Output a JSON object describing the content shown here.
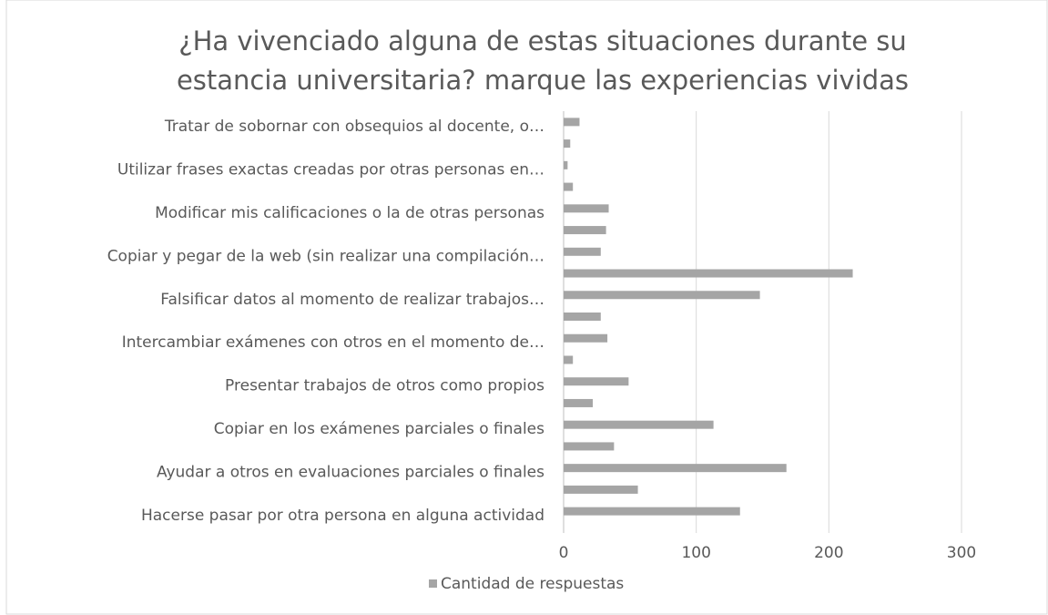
{
  "chart_data": {
    "type": "hbar",
    "title": [
      "¿Ha vivenciado alguna de estas situaciones durante su",
      "estancia universitaria? marque las experiencias vividas"
    ],
    "categories": [
      "Hacerse pasar por otra persona en alguna actividad",
      null,
      "Ayudar a otros en evaluaciones parciales o finales",
      null,
      "Copiar en los exámenes parciales o finales",
      null,
      "Presentar trabajos de otros como propios",
      null,
      "Intercambiar exámenes con otros en el momento de…",
      null,
      "Falsificar datos al momento de realizar trabajos…",
      null,
      "Copiar y pegar de la web (sin realizar una compilación…",
      null,
      "Modificar mis calificaciones o la de otras personas",
      null,
      "Utilizar frases exactas creadas por otras personas en…",
      null,
      "Tratar de sobornar con obsequios al docente, o…"
    ],
    "series": [
      {
        "name": "Cantidad de respuestas",
        "color": "#a5a5a5",
        "values": [
          133,
          56,
          168,
          38,
          113,
          22,
          49,
          7,
          33,
          28,
          148,
          218,
          28,
          32,
          34,
          7,
          3,
          5,
          12
        ]
      }
    ],
    "xlim": [
      0,
      300
    ],
    "xticks": [
      0,
      100,
      200,
      300
    ],
    "grid": true,
    "legend": "bottom"
  }
}
